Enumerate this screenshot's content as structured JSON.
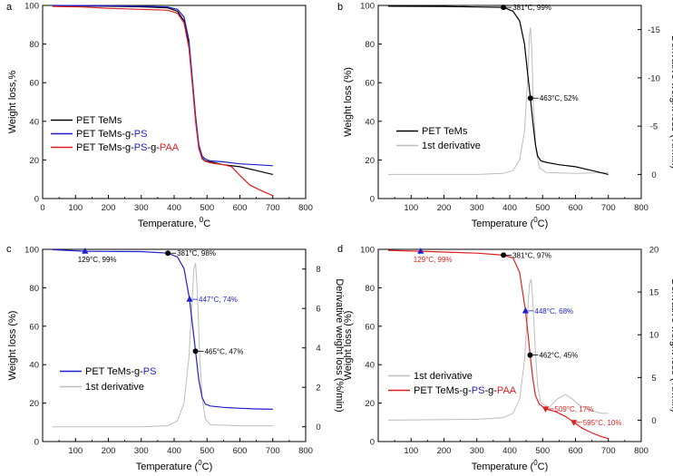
{
  "colors": {
    "black": "#000000",
    "blue": "#1f1fd0",
    "red": "#e0201e",
    "derivative": "#bdbdbd"
  },
  "chart_data": [
    {
      "type": "line",
      "panel": "a",
      "xlabel": "Temperature, ",
      "xlabel_sup": "0",
      "xlabel_tail": "C",
      "ylabel": "Weight loss,%",
      "xlim": [
        0,
        800
      ],
      "ylim": [
        0,
        100
      ],
      "xticks": [
        "0",
        "100",
        "200",
        "300",
        "400",
        "500",
        "600",
        "700",
        "800"
      ],
      "yticks": [
        "0",
        "20",
        "40",
        "60",
        "80",
        "100"
      ],
      "legend_position": "center-left",
      "legend": [
        {
          "parts": [
            {
              "text": "PET TeMs",
              "color": "black"
            }
          ],
          "color": "black"
        },
        {
          "parts": [
            {
              "text": "PET TeMs-g-",
              "color": "black"
            },
            {
              "text": "PS",
              "color": "blue"
            }
          ],
          "color": "blue"
        },
        {
          "parts": [
            {
              "text": "PET TeMs-g-",
              "color": "black"
            },
            {
              "text": "PS",
              "color": "blue"
            },
            {
              "text": "-g-",
              "color": "black"
            },
            {
              "text": "PAA",
              "color": "red"
            }
          ],
          "color": "red"
        }
      ],
      "series": [
        {
          "name": "PET TeMs",
          "color": "black",
          "x": [
            30,
            200,
            300,
            380,
            410,
            430,
            445,
            455,
            465,
            475,
            485,
            495,
            510,
            550,
            600,
            650,
            700
          ],
          "y": [
            99.8,
            99.6,
            99.3,
            98.8,
            97,
            92,
            80,
            62,
            42,
            27,
            21,
            19.5,
            19,
            17.5,
            16.5,
            14.5,
            12.5
          ]
        },
        {
          "name": "PET TeMs-g-PS",
          "color": "blue",
          "x": [
            30,
            200,
            300,
            380,
            410,
            430,
            445,
            455,
            465,
            475,
            485,
            495,
            510,
            550,
            600,
            650,
            700
          ],
          "y": [
            100,
            99.8,
            99.6,
            99.2,
            98,
            94,
            82,
            63,
            43,
            28,
            22,
            20.5,
            19.5,
            19,
            18,
            17.5,
            17
          ]
        },
        {
          "name": "PET TeMs-g-PS-g-PAA",
          "color": "red",
          "x": [
            30,
            120,
            200,
            300,
            380,
            410,
            430,
            445,
            455,
            465,
            475,
            485,
            495,
            510,
            530,
            550,
            575,
            600,
            630,
            660,
            700
          ],
          "y": [
            99.5,
            99.2,
            98.5,
            98,
            97.5,
            96,
            91,
            78,
            60,
            40,
            26,
            20.5,
            19.3,
            18.5,
            18,
            17.5,
            16.5,
            12,
            7,
            4.5,
            1.5
          ]
        }
      ]
    },
    {
      "type": "line",
      "panel": "b",
      "xlabel": "Temperature (",
      "xlabel_sup": "0",
      "xlabel_tail": "C)",
      "ylabel": "Weight loss (%)",
      "y2label": "Derivative weight loss (%/min)",
      "xlim": [
        0,
        800
      ],
      "ylim": [
        0,
        100
      ],
      "y2lim": [
        2.5,
        -17.5
      ],
      "xticks": [
        "100",
        "200",
        "300",
        "400",
        "500",
        "600",
        "700",
        "800"
      ],
      "yticks": [
        "0",
        "20",
        "40",
        "60",
        "80",
        "100"
      ],
      "y2ticks": [
        "0",
        "-5",
        "-10",
        "-15"
      ],
      "legend_position": "center-left",
      "legend": [
        {
          "parts": [
            {
              "text": "PET TeMs",
              "color": "black"
            }
          ],
          "color": "black"
        },
        {
          "parts": [
            {
              "text": "1st derivative",
              "color": "black"
            }
          ],
          "color": "derivative"
        }
      ],
      "series": [
        {
          "name": "PET TeMs",
          "color": "black",
          "x": [
            30,
            200,
            300,
            381,
            410,
            430,
            445,
            455,
            463,
            470,
            478,
            485,
            495,
            510,
            550,
            600,
            650,
            700
          ],
          "y": [
            99.6,
            99.5,
            99.2,
            99,
            97,
            92,
            80,
            64,
            52,
            40,
            28,
            22,
            19.5,
            18.8,
            17.5,
            16.5,
            14.5,
            12.5
          ]
        }
      ],
      "derivative": {
        "name": "1st derivative",
        "color": "derivative",
        "x": [
          30,
          300,
          380,
          410,
          430,
          445,
          455,
          460,
          463,
          467,
          472,
          480,
          490,
          510,
          600,
          700
        ],
        "y": [
          0,
          0,
          -0.1,
          -0.4,
          -1.5,
          -4.5,
          -10,
          -14.5,
          -15.2,
          -13,
          -7,
          -2.5,
          -0.7,
          -0.2,
          -0.1,
          -0.2
        ]
      },
      "annotations": [
        {
          "label": "381°C, 99%",
          "x": 381,
          "y": 99,
          "marker": "circle",
          "color": "black"
        },
        {
          "label": "463°C, 52%",
          "x": 463,
          "y": 52,
          "marker": "circle",
          "color": "black"
        }
      ]
    },
    {
      "type": "line",
      "panel": "c",
      "xlabel": "Temperature (",
      "xlabel_sup": "0",
      "xlabel_tail": "C)",
      "ylabel": "Weight loss (%)",
      "y2label": "Derivative weight loss (%/min)",
      "xlim": [
        0,
        800
      ],
      "ylim": [
        0,
        100
      ],
      "y2lim": [
        -0.75,
        9
      ],
      "xticks": [
        "100",
        "200",
        "300",
        "400",
        "500",
        "600",
        "700",
        "800"
      ],
      "yticks": [
        "0",
        "20",
        "40",
        "60",
        "80",
        "100"
      ],
      "y2ticks": [
        "0",
        "2",
        "4",
        "6",
        "8"
      ],
      "legend_position": "center-left",
      "legend": [
        {
          "parts": [
            {
              "text": "PET TeMs-g-",
              "color": "black"
            },
            {
              "text": "PS",
              "color": "blue"
            }
          ],
          "color": "blue"
        },
        {
          "parts": [
            {
              "text": "1st derivative",
              "color": "black"
            }
          ],
          "color": "derivative"
        }
      ],
      "series": [
        {
          "name": "PET TeMs-g-PS",
          "color": "blue",
          "x": [
            30,
            129,
            200,
            300,
            381,
            410,
            430,
            447,
            455,
            465,
            475,
            485,
            495,
            510,
            550,
            600,
            650,
            700
          ],
          "y": [
            99.8,
            99,
            98.9,
            98.8,
            98,
            96,
            90,
            74,
            62,
            47,
            32,
            23,
            19.5,
            18.5,
            17.8,
            17.3,
            17,
            16.8
          ]
        }
      ],
      "derivative": {
        "name": "1st derivative",
        "color": "derivative",
        "x": [
          30,
          300,
          380,
          410,
          430,
          445,
          455,
          460,
          465,
          470,
          478,
          485,
          495,
          510,
          600,
          700
        ],
        "y": [
          0,
          0,
          0.05,
          0.3,
          1.2,
          3.5,
          6.5,
          8,
          8.3,
          7,
          3.5,
          1.5,
          0.4,
          0.1,
          0.05,
          0.05
        ]
      },
      "annotations": [
        {
          "label": "129°C, 99%",
          "x": 129,
          "y": 99,
          "marker": "triangle-up",
          "color": "blue",
          "label_color": "black",
          "label_side": "below"
        },
        {
          "label": "381°C, 98%",
          "x": 381,
          "y": 98,
          "marker": "circle",
          "color": "black"
        },
        {
          "label": "447°C, 74%",
          "x": 447,
          "y": 74,
          "marker": "triangle-up",
          "color": "blue"
        },
        {
          "label": "465°C, 47%",
          "x": 465,
          "y": 47,
          "marker": "circle",
          "color": "black"
        }
      ]
    },
    {
      "type": "line",
      "panel": "d",
      "xlabel": "Temperature (",
      "xlabel_sup": "0",
      "xlabel_tail": "C)",
      "ylabel": "Weight loss (%)",
      "y2label": "Derivative weight loss (%/min)",
      "xlim": [
        0,
        800
      ],
      "ylim": [
        0,
        100
      ],
      "y2lim": [
        -2.5,
        20
      ],
      "xticks": [
        "100",
        "200",
        "300",
        "400",
        "500",
        "600",
        "700",
        "800"
      ],
      "yticks": [
        "0",
        "20",
        "40",
        "60",
        "80",
        "100"
      ],
      "y2ticks": [
        "0",
        "5",
        "10",
        "15",
        "20"
      ],
      "legend_position": "bottom-left",
      "legend": [
        {
          "parts": [
            {
              "text": "1st derivative",
              "color": "black"
            }
          ],
          "color": "derivative"
        },
        {
          "parts": [
            {
              "text": "PET TeMs-g-",
              "color": "black"
            },
            {
              "text": "PS",
              "color": "blue"
            },
            {
              "text": "-g-",
              "color": "black"
            },
            {
              "text": "PAA",
              "color": "red"
            }
          ],
          "color": "red"
        }
      ],
      "series": [
        {
          "name": "PET TeMs-g-PS-g-PAA",
          "color": "red",
          "x": [
            30,
            129,
            200,
            300,
            381,
            410,
            430,
            448,
            455,
            462,
            470,
            478,
            490,
            509,
            540,
            570,
            595,
            620,
            650,
            680,
            700
          ],
          "y": [
            99.5,
            99,
            98.6,
            98,
            97,
            95.5,
            88,
            68,
            57,
            45,
            33,
            24,
            19.5,
            17,
            15.5,
            13,
            10,
            7,
            4.5,
            2.5,
            1.5
          ]
        }
      ],
      "derivative": {
        "name": "1st derivative",
        "color": "derivative",
        "x": [
          30,
          300,
          380,
          410,
          430,
          445,
          455,
          460,
          465,
          470,
          478,
          485,
          495,
          520,
          545,
          570,
          590,
          610,
          640,
          680,
          700
        ],
        "y": [
          0,
          0.1,
          0.3,
          0.8,
          2.5,
          7,
          13,
          16,
          16.5,
          14,
          8,
          4,
          2,
          1.5,
          2.5,
          3,
          2.5,
          1.8,
          1.2,
          0.8,
          0.8
        ]
      },
      "annotations": [
        {
          "label": "129°C, 99%",
          "x": 129,
          "y": 99,
          "marker": "triangle-up",
          "color": "blue",
          "label_color": "red",
          "label_side": "below"
        },
        {
          "label": "381°C, 97%",
          "x": 381,
          "y": 97,
          "marker": "circle",
          "color": "black"
        },
        {
          "label": "448°C, 68%",
          "x": 448,
          "y": 68,
          "marker": "triangle-up",
          "color": "blue"
        },
        {
          "label": "462°C, 45%",
          "x": 462,
          "y": 45,
          "marker": "circle",
          "color": "black"
        },
        {
          "label": "509°C, 17%",
          "x": 509,
          "y": 17,
          "marker": "triangle-down",
          "color": "red"
        },
        {
          "label": "595°C, 10%",
          "x": 595,
          "y": 10,
          "marker": "triangle-down",
          "color": "red"
        }
      ]
    }
  ]
}
